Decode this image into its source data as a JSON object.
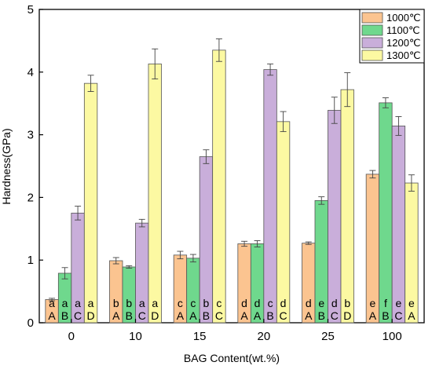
{
  "chart_data": {
    "type": "bar",
    "xlabel": "BAG Content(wt.%)",
    "ylabel": "Hardness(GPa)",
    "ylim": [
      0,
      5
    ],
    "yticks": [
      "0",
      "1",
      "2",
      "3",
      "4",
      "5"
    ],
    "categories": [
      "0",
      "10",
      "15",
      "20",
      "25",
      "100"
    ],
    "legend_position": "top-right",
    "series": [
      {
        "name": "1000℃",
        "color": "#FBC490",
        "values": [
          0.37,
          0.99,
          1.08,
          1.26,
          1.27,
          2.37
        ],
        "errors": [
          0.02,
          0.05,
          0.06,
          0.04,
          0.02,
          0.06
        ],
        "lower_letters": [
          "a",
          "b",
          "c",
          "d",
          "d",
          "e"
        ],
        "upper_letters": [
          "A",
          "A",
          "A",
          "A",
          "A",
          "A"
        ]
      },
      {
        "name": "1100℃",
        "color": "#6FD88D",
        "values": [
          0.79,
          0.89,
          1.03,
          1.26,
          1.95,
          3.51
        ],
        "errors": [
          0.09,
          0.02,
          0.06,
          0.05,
          0.06,
          0.08
        ],
        "lower_letters": [
          "a",
          "b",
          "c",
          "d",
          "e",
          "f"
        ],
        "upper_letters": [
          "B",
          "B",
          "A",
          "A",
          "B",
          "B"
        ]
      },
      {
        "name": "1200℃",
        "color": "#C9AEDA",
        "values": [
          1.75,
          1.59,
          2.65,
          4.04,
          3.39,
          3.14
        ],
        "errors": [
          0.11,
          0.06,
          0.11,
          0.09,
          0.21,
          0.15
        ],
        "lower_letters": [
          "a",
          "a",
          "b",
          "c",
          "d",
          "e"
        ],
        "upper_letters": [
          "C",
          "C",
          "B",
          "B",
          "C",
          "C"
        ]
      },
      {
        "name": "1300℃",
        "color": "#FCF9A2",
        "values": [
          3.82,
          4.13,
          4.35,
          3.21,
          3.72,
          2.23
        ],
        "errors": [
          0.13,
          0.24,
          0.18,
          0.16,
          0.27,
          0.13
        ],
        "lower_letters": [
          "a",
          "a",
          "c",
          "d",
          "b",
          "e"
        ],
        "upper_letters": [
          "D",
          "D",
          "C",
          "C",
          "D",
          "A"
        ]
      }
    ]
  }
}
